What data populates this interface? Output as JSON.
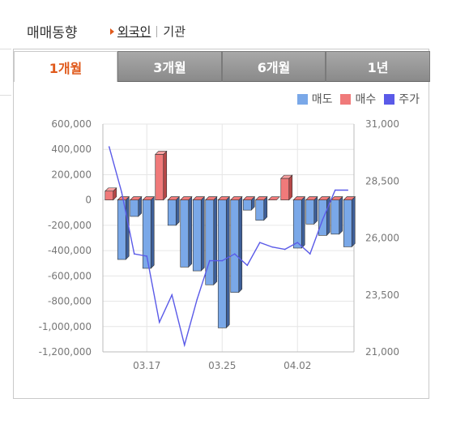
{
  "header": {
    "title": "매매동향",
    "filters": [
      {
        "label": "외국인",
        "active": true
      },
      {
        "label": "기관",
        "active": false
      }
    ]
  },
  "tabs": [
    {
      "label": "1개월",
      "active": true
    },
    {
      "label": "3개월",
      "active": false
    },
    {
      "label": "6개월",
      "active": false
    },
    {
      "label": "1년",
      "active": false
    }
  ],
  "chart_data": {
    "type": "bar",
    "legend": [
      {
        "name": "매도",
        "color": "#7aa8e8"
      },
      {
        "name": "매수",
        "color": "#f07a7a"
      },
      {
        "name": "주가",
        "color": "#5a5ae8"
      }
    ],
    "legend_position": "top-right",
    "x_tick_labels": [
      {
        "label": "03.17",
        "index": 3
      },
      {
        "label": "03.25",
        "index": 9
      },
      {
        "label": "04.02",
        "index": 15
      }
    ],
    "y_left": {
      "ticks": [
        "600,000",
        "400,000",
        "200,000",
        "0",
        "-200,000",
        "-400,000",
        "-600,000",
        "-800,000",
        "-1,000,000",
        "-1,200,000"
      ],
      "min": -1200000,
      "max": 600000
    },
    "y_right": {
      "ticks": [
        "31,000",
        "28,500",
        "26,000",
        "23,500",
        "21,000"
      ],
      "min": 21000,
      "max": 31000
    },
    "grid": true,
    "series": [
      {
        "name": "매수",
        "kind": "bar",
        "values": [
          70000,
          0,
          0,
          0,
          360000,
          0,
          0,
          0,
          0,
          0,
          0,
          0,
          0,
          0,
          170000,
          0,
          0,
          0,
          0,
          0
        ]
      },
      {
        "name": "매도",
        "kind": "bar",
        "values": [
          0,
          -470000,
          -130000,
          -540000,
          0,
          -200000,
          -530000,
          -560000,
          -670000,
          -1010000,
          -730000,
          -80000,
          -160000,
          0,
          0,
          -380000,
          -190000,
          -280000,
          -270000,
          -370000
        ]
      },
      {
        "name": "주가",
        "kind": "line",
        "values": [
          30000,
          28000,
          25300,
          25200,
          22300,
          23500,
          21300,
          23300,
          25000,
          25000,
          25300,
          24800,
          25800,
          25600,
          25500,
          25800,
          25300,
          26800,
          28100,
          28100
        ]
      }
    ]
  }
}
